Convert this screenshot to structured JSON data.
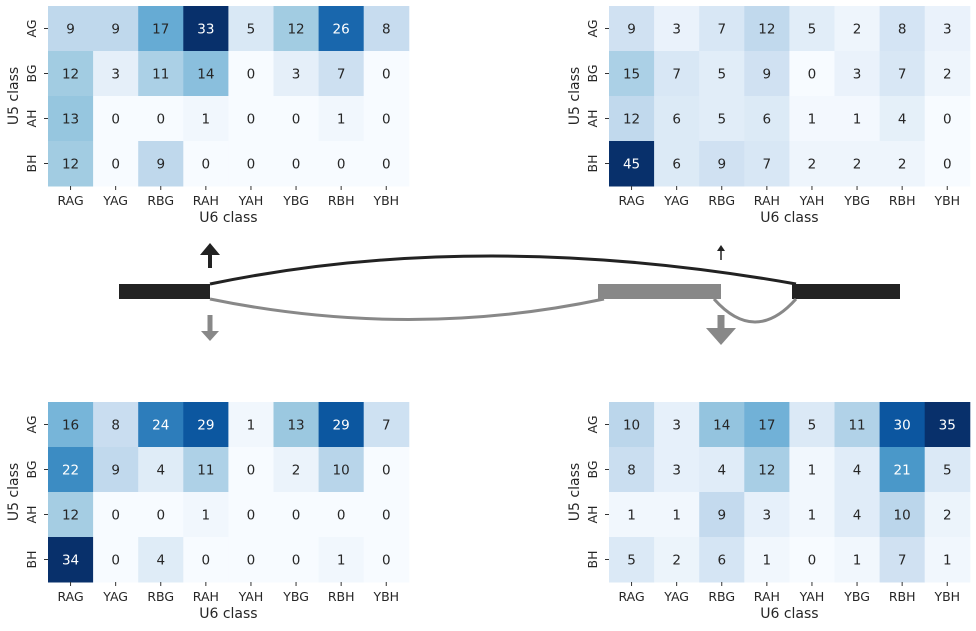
{
  "chart_data": [
    {
      "type": "heatmap",
      "xlabel": "U6 class",
      "ylabel": "U5 class",
      "x_categories": [
        "RAG",
        "YAG",
        "RBG",
        "RAH",
        "YAH",
        "YBG",
        "RBH",
        "YBH"
      ],
      "y_categories": [
        "AG",
        "BG",
        "AH",
        "BH"
      ],
      "values": [
        [
          9,
          9,
          17,
          33,
          5,
          12,
          26,
          8
        ],
        [
          12,
          3,
          11,
          14,
          0,
          3,
          7,
          0
        ],
        [
          13,
          0,
          0,
          1,
          0,
          0,
          1,
          0
        ],
        [
          12,
          0,
          9,
          0,
          0,
          0,
          0,
          0
        ]
      ],
      "colormap": "Blues",
      "colorbar": false
    },
    {
      "type": "heatmap",
      "xlabel": "U6 class",
      "ylabel": "U5 class",
      "x_categories": [
        "RAG",
        "YAG",
        "RBG",
        "RAH",
        "YAH",
        "YBG",
        "RBH",
        "YBH"
      ],
      "y_categories": [
        "AG",
        "BG",
        "AH",
        "BH"
      ],
      "values": [
        [
          9,
          3,
          7,
          12,
          5,
          2,
          8,
          3
        ],
        [
          15,
          7,
          5,
          9,
          0,
          3,
          7,
          2
        ],
        [
          12,
          6,
          5,
          6,
          1,
          1,
          4,
          0
        ],
        [
          45,
          6,
          9,
          7,
          2,
          2,
          2,
          0
        ]
      ],
      "colormap": "Blues",
      "colorbar": false
    },
    {
      "type": "heatmap",
      "xlabel": "U6 class",
      "ylabel": "U5 class",
      "x_categories": [
        "RAG",
        "YAG",
        "RBG",
        "RAH",
        "YAH",
        "YBG",
        "RBH",
        "YBH"
      ],
      "y_categories": [
        "AG",
        "BG",
        "AH",
        "BH"
      ],
      "values": [
        [
          16,
          8,
          24,
          29,
          1,
          13,
          29,
          7
        ],
        [
          22,
          9,
          4,
          11,
          0,
          2,
          10,
          0
        ],
        [
          12,
          0,
          0,
          1,
          0,
          0,
          0,
          0
        ],
        [
          34,
          0,
          4,
          0,
          0,
          0,
          1,
          0
        ]
      ],
      "colormap": "Blues",
      "colorbar": false
    },
    {
      "type": "heatmap",
      "xlabel": "U6 class",
      "ylabel": "U5 class",
      "x_categories": [
        "RAG",
        "YAG",
        "RBG",
        "RAH",
        "YAH",
        "YBG",
        "RBH",
        "YBH"
      ],
      "y_categories": [
        "AG",
        "BG",
        "AH",
        "BH"
      ],
      "values": [
        [
          10,
          3,
          14,
          17,
          5,
          11,
          30,
          35
        ],
        [
          8,
          3,
          4,
          12,
          1,
          4,
          21,
          5
        ],
        [
          1,
          1,
          9,
          3,
          1,
          4,
          10,
          2
        ],
        [
          5,
          2,
          6,
          1,
          0,
          1,
          7,
          1
        ]
      ],
      "colormap": "Blues",
      "colorbar": false
    }
  ],
  "diagram": {
    "colors": {
      "constitutive_exon": "#222222",
      "alternative_exon": "#888888",
      "inclusion_junction": "#888888",
      "skipping_junction": "#222222"
    },
    "arrows": [
      {
        "name": "left-up-arrow",
        "direction": "up",
        "color": "#222222"
      },
      {
        "name": "right-up-arrow",
        "direction": "up",
        "color": "#222222"
      },
      {
        "name": "left-down-arrow",
        "direction": "down",
        "color": "#888888"
      },
      {
        "name": "right-down-arrow",
        "direction": "down",
        "color": "#888888"
      }
    ]
  }
}
